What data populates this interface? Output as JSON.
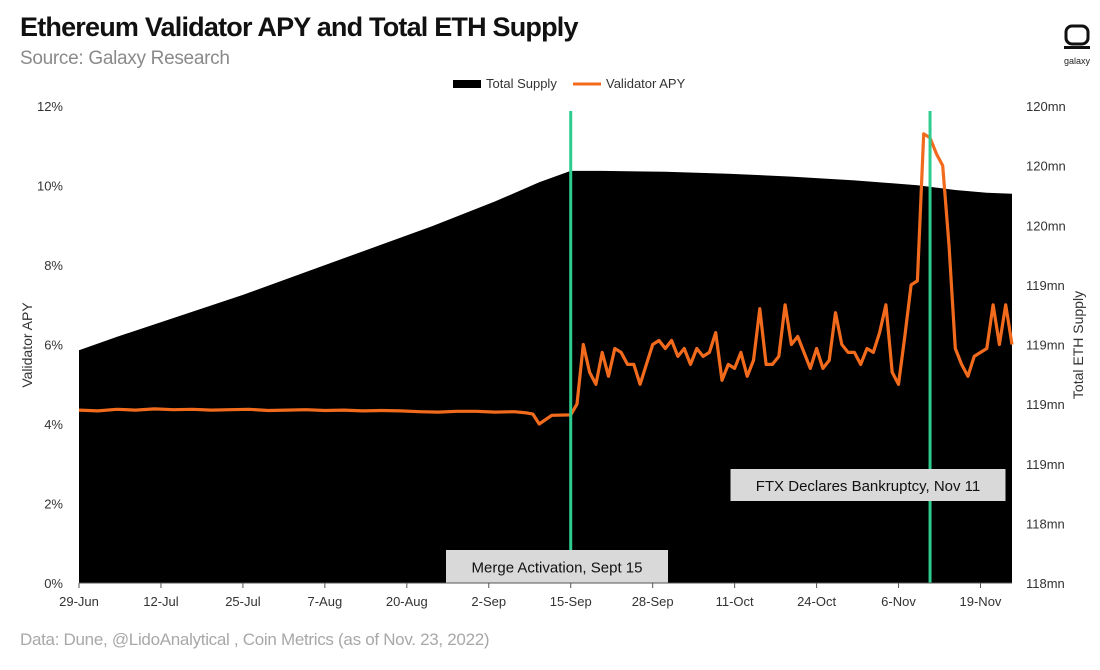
{
  "header": {
    "title": "Ethereum Validator APY and Total ETH Supply",
    "subtitle": "Source: Galaxy Research",
    "logo_text": "galaxy"
  },
  "footer": {
    "source_note": "Data: Dune, @LidoAnalytical , Coin Metrics (as of Nov. 23, 2022)"
  },
  "colors": {
    "supply": "#000000",
    "apy": "#f26b1d",
    "event_line": "#2ecc8f",
    "annotation_bg": "#d9d9d9"
  },
  "chart_data": {
    "type": "area+line",
    "title": "Ethereum Validator APY and Total ETH Supply",
    "subtitle": "Source: Galaxy Research",
    "ylabel_left": "Validator APY",
    "ylabel_right": "Total ETH Supply",
    "x_ticks": [
      "29-Jun",
      "12-Jul",
      "25-Jul",
      "7-Aug",
      "20-Aug",
      "2-Sep",
      "15-Sep",
      "28-Sep",
      "11-Oct",
      "24-Oct",
      "6-Nov",
      "19-Nov"
    ],
    "y_left_ticks": [
      "0%",
      "2%",
      "4%",
      "6%",
      "8%",
      "10%",
      "12%"
    ],
    "y_left_range": [
      0,
      12
    ],
    "y_right_ticks": [
      "118mn",
      "118mn",
      "119mn",
      "119mn",
      "119mn",
      "119mn",
      "120mn",
      "120mn",
      "120mn"
    ],
    "y_right_range": [
      117.7,
      120.2
    ],
    "x_range": [
      "2022-06-29",
      "2022-11-24"
    ],
    "legend": [
      "Total Supply",
      "Validator APY"
    ],
    "legend_position": "top-center",
    "grid": false,
    "series": [
      {
        "name": "Total Supply",
        "type": "area",
        "x": [
          "2022-06-29",
          "2022-07-05",
          "2022-07-15",
          "2022-07-25",
          "2022-08-04",
          "2022-08-14",
          "2022-08-24",
          "2022-09-03",
          "2022-09-10",
          "2022-09-15",
          "2022-09-20",
          "2022-09-30",
          "2022-10-10",
          "2022-10-20",
          "2022-10-30",
          "2022-11-09",
          "2022-11-15",
          "2022-11-20",
          "2022-11-24"
        ],
        "values": [
          118.92,
          118.99,
          119.1,
          119.21,
          119.33,
          119.45,
          119.57,
          119.7,
          119.8,
          119.86,
          119.86,
          119.855,
          119.845,
          119.83,
          119.81,
          119.785,
          119.76,
          119.745,
          119.74
        ]
      },
      {
        "name": "Validator APY",
        "type": "line",
        "x": [
          "2022-06-29",
          "2022-07-02",
          "2022-07-05",
          "2022-07-08",
          "2022-07-11",
          "2022-07-14",
          "2022-07-17",
          "2022-07-20",
          "2022-07-23",
          "2022-07-26",
          "2022-07-29",
          "2022-08-01",
          "2022-08-04",
          "2022-08-07",
          "2022-08-10",
          "2022-08-13",
          "2022-08-16",
          "2022-08-19",
          "2022-08-22",
          "2022-08-25",
          "2022-08-28",
          "2022-08-31",
          "2022-09-03",
          "2022-09-06",
          "2022-09-08",
          "2022-09-09",
          "2022-09-10",
          "2022-09-12",
          "2022-09-15",
          "2022-09-16",
          "2022-09-17",
          "2022-09-18",
          "2022-09-19",
          "2022-09-20",
          "2022-09-21",
          "2022-09-22",
          "2022-09-23",
          "2022-09-24",
          "2022-09-25",
          "2022-09-26",
          "2022-09-27",
          "2022-09-28",
          "2022-09-29",
          "2022-09-30",
          "2022-10-01",
          "2022-10-02",
          "2022-10-03",
          "2022-10-04",
          "2022-10-05",
          "2022-10-06",
          "2022-10-07",
          "2022-10-08",
          "2022-10-09",
          "2022-10-10",
          "2022-10-11",
          "2022-10-12",
          "2022-10-13",
          "2022-10-14",
          "2022-10-15",
          "2022-10-16",
          "2022-10-17",
          "2022-10-18",
          "2022-10-19",
          "2022-10-20",
          "2022-10-21",
          "2022-10-22",
          "2022-10-23",
          "2022-10-24",
          "2022-10-25",
          "2022-10-26",
          "2022-10-27",
          "2022-10-28",
          "2022-10-29",
          "2022-10-30",
          "2022-10-31",
          "2022-11-01",
          "2022-11-02",
          "2022-11-03",
          "2022-11-04",
          "2022-11-05",
          "2022-11-06",
          "2022-11-07",
          "2022-11-08",
          "2022-11-09",
          "2022-11-10",
          "2022-11-11",
          "2022-11-12",
          "2022-11-13",
          "2022-11-14",
          "2022-11-15",
          "2022-11-16",
          "2022-11-17",
          "2022-11-18",
          "2022-11-19",
          "2022-11-20",
          "2022-11-21",
          "2022-11-22",
          "2022-11-23",
          "2022-11-24"
        ],
        "values": [
          4.35,
          4.33,
          4.37,
          4.35,
          4.38,
          4.36,
          4.37,
          4.35,
          4.36,
          4.37,
          4.34,
          4.35,
          4.36,
          4.34,
          4.35,
          4.33,
          4.34,
          4.33,
          4.31,
          4.3,
          4.32,
          4.32,
          4.3,
          4.31,
          4.28,
          4.25,
          4.0,
          4.22,
          4.23,
          4.5,
          6.0,
          5.3,
          5.0,
          5.8,
          5.2,
          5.9,
          5.8,
          5.5,
          5.5,
          5.0,
          5.5,
          6.0,
          6.1,
          5.9,
          6.1,
          5.7,
          5.9,
          5.5,
          5.9,
          5.7,
          5.8,
          6.3,
          5.1,
          5.5,
          5.4,
          5.8,
          5.2,
          5.6,
          6.9,
          5.5,
          5.5,
          5.7,
          7.0,
          6.0,
          6.2,
          5.8,
          5.4,
          5.9,
          5.4,
          5.6,
          6.8,
          6.0,
          5.8,
          5.8,
          5.5,
          5.9,
          5.8,
          6.3,
          7.0,
          5.3,
          5.0,
          6.2,
          7.5,
          7.6,
          11.3,
          11.2,
          10.8,
          10.5,
          8.5,
          5.9,
          5.5,
          5.2,
          5.7,
          5.8,
          5.9,
          7.0,
          6.0,
          7.0,
          6.0
        ]
      }
    ],
    "annotations": [
      {
        "date": "2022-09-15",
        "label": "Merge Activation, Sept 15"
      },
      {
        "date": "2022-11-11",
        "label": "FTX Declares Bankruptcy, Nov 11"
      }
    ]
  }
}
